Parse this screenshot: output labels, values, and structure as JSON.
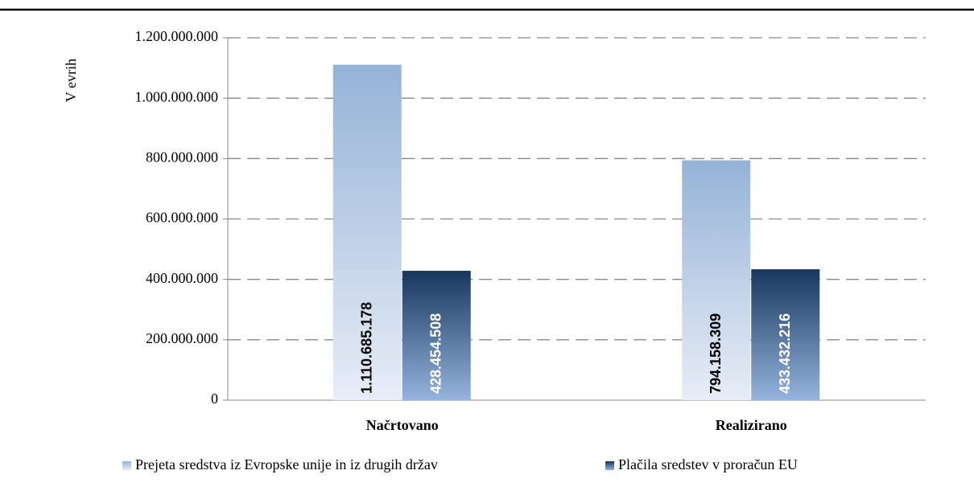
{
  "chart_data": {
    "type": "bar",
    "y_label": "V evrih",
    "categories": [
      "Načrtovano",
      "Realizirano"
    ],
    "series": [
      {
        "name": "Prejeta sredstva iz Evropske unije in iz drugih držav",
        "color": "#95b3d7",
        "values": [
          1110685178,
          794158309
        ],
        "value_labels": [
          "1.110.685.178",
          "794.158.309"
        ]
      },
      {
        "name": "Plačila sredstev v proračun EU",
        "color": "#17375e",
        "values": [
          428454508,
          433432216
        ],
        "value_labels": [
          "428.454.508",
          "433.432.216"
        ]
      }
    ],
    "ylim": [
      0,
      1200000000
    ],
    "yticks": [
      0,
      {
        "value": 200000000,
        "label": "200.000.000"
      },
      {
        "value": 400000000,
        "label": "400.000.000"
      },
      {
        "value": 600000000,
        "label": "600.000.000"
      },
      {
        "value": 800000000,
        "label": "800.000.000"
      },
      {
        "value": 1000000000,
        "label": "1.000.000.000"
      },
      {
        "value": 1200000000,
        "label": "1.200.000.000"
      }
    ],
    "grid": true,
    "legend": "bottom"
  }
}
